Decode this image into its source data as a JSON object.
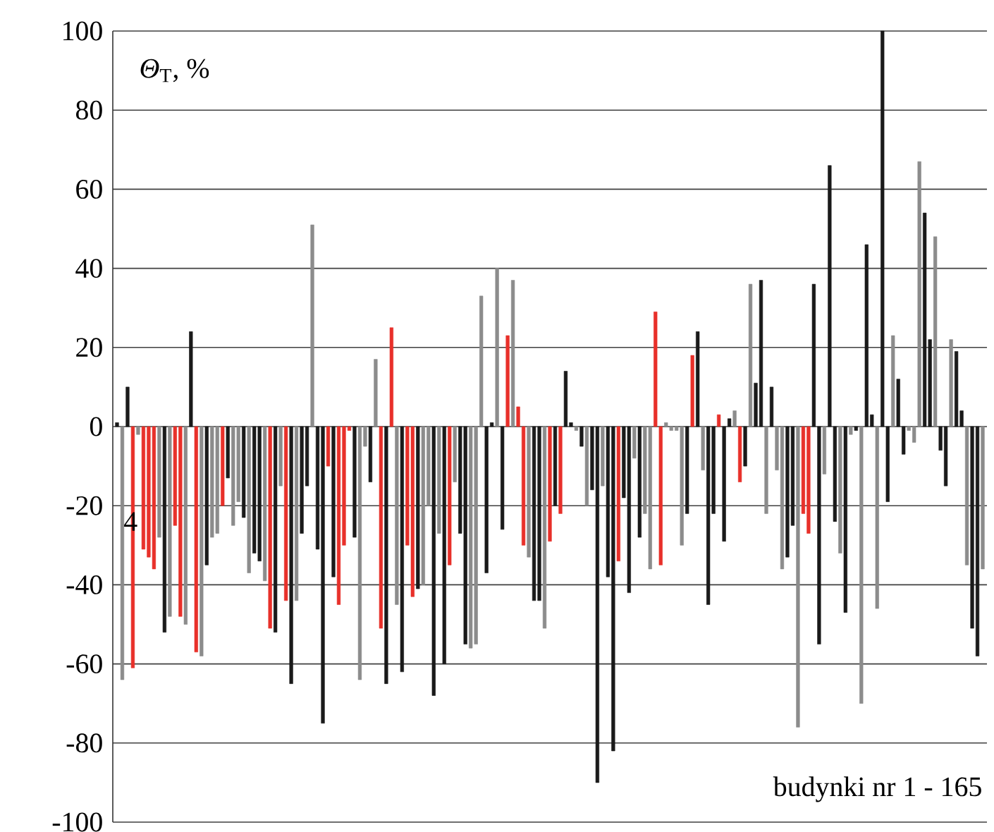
{
  "chart_data": {
    "type": "bar",
    "ylabel": "*Θ*$_{T}$, %",
    "xlabel": "budynki nr 1 - 165",
    "annotations": [
      "4"
    ],
    "ylim": [
      -100,
      100
    ],
    "yticks": [
      -100,
      -80,
      -60,
      -40,
      -20,
      0,
      20,
      40,
      60,
      80,
      100
    ],
    "grid": "y",
    "categories": [
      null,
      null,
      null,
      null,
      null,
      null,
      null,
      null,
      null,
      null,
      null,
      null,
      null,
      null,
      null,
      null,
      null,
      null,
      null,
      null,
      null,
      null,
      null,
      null,
      null,
      null,
      null,
      null,
      null,
      null,
      null,
      null,
      null,
      null,
      null,
      null,
      null,
      null,
      null,
      null,
      null,
      null,
      null,
      null,
      null,
      null,
      null,
      null,
      null,
      null,
      null,
      null,
      null,
      null,
      null,
      null,
      null,
      null,
      null,
      null,
      null,
      null,
      null,
      null,
      null,
      null,
      null,
      null,
      null,
      null,
      null,
      null,
      null,
      null,
      null,
      null,
      null,
      null,
      null,
      null,
      null,
      null,
      null,
      null,
      null,
      null,
      null,
      null,
      null,
      null,
      null,
      null,
      null,
      null,
      null,
      null,
      null,
      null,
      null,
      null,
      null,
      null,
      null,
      null,
      null,
      null,
      null,
      null,
      null,
      null,
      null,
      null,
      null,
      null,
      null,
      null,
      null,
      null,
      null,
      null,
      null,
      null,
      null,
      null,
      null,
      null,
      null,
      null,
      null,
      null,
      null,
      null,
      null,
      null,
      null,
      null,
      null,
      null,
      null,
      null,
      null,
      null,
      null,
      null,
      null,
      null,
      null,
      null,
      null,
      null,
      null,
      null,
      null,
      null,
      null,
      null,
      null,
      null,
      null,
      null,
      null,
      null,
      null,
      null,
      null
    ],
    "values": [
      1,
      -64,
      10,
      -61,
      -2,
      -31,
      -33,
      -36,
      -28,
      -52,
      -48,
      -25,
      -48,
      -50,
      24,
      -57,
      -58,
      -35,
      -28,
      -27,
      -20,
      -13,
      -25,
      -19,
      -23,
      -37,
      -32,
      -34,
      -39,
      -51,
      -52,
      -15,
      -44,
      -65,
      -44,
      -27,
      -15,
      51,
      -31,
      -75,
      -10,
      -38,
      -45,
      -30,
      -1,
      -28,
      -64,
      -5,
      -14,
      17,
      -51,
      -65,
      25,
      -45,
      -62,
      -30,
      -43,
      -41,
      -40,
      -20,
      -68,
      -27,
      -60,
      -35,
      -14,
      -27,
      -55,
      -56,
      -55,
      33,
      -37,
      1,
      40,
      -26,
      23,
      37,
      5,
      -30,
      -33,
      -44,
      -44,
      -51,
      -29,
      -20,
      -22,
      14,
      1,
      -1,
      -5,
      -20,
      -16,
      -90,
      -15,
      -38,
      -82,
      -34,
      -18,
      -42,
      -8,
      -28,
      -22,
      -36,
      29,
      -35,
      1,
      -1,
      -1,
      -30,
      -22,
      18,
      24,
      -11,
      -45,
      -22,
      3,
      -29,
      2,
      4,
      -14,
      -10,
      36,
      11,
      37,
      -22,
      10,
      -11,
      -36,
      -33,
      -25,
      -76,
      -22,
      -27,
      36,
      -55,
      -12,
      66,
      -24,
      -32,
      -47,
      -2,
      -1,
      -70,
      46,
      3,
      -46,
      100,
      -19,
      23,
      12,
      -7,
      -1,
      -4,
      67,
      54,
      22,
      48,
      -6,
      -15,
      22,
      19,
      4,
      -35,
      -51,
      -58,
      -36
    ],
    "colors": [
      "#1a1a1a",
      "#8c8c8c",
      "#1a1a1a",
      "#e8302a",
      "#8c8c8c",
      "#e8302a",
      "#e8302a",
      "#e8302a",
      "#8c8c8c",
      "#1a1a1a",
      "#8c8c8c",
      "#e8302a",
      "#e8302a",
      "#8c8c8c",
      "#1a1a1a",
      "#e8302a",
      "#8c8c8c",
      "#1a1a1a",
      "#8c8c8c",
      "#8c8c8c",
      "#e8302a",
      "#1a1a1a",
      "#8c8c8c",
      "#8c8c8c",
      "#1a1a1a",
      "#8c8c8c",
      "#1a1a1a",
      "#1a1a1a",
      "#8c8c8c",
      "#e8302a",
      "#1a1a1a",
      "#8c8c8c",
      "#e8302a",
      "#1a1a1a",
      "#8c8c8c",
      "#1a1a1a",
      "#1a1a1a",
      "#8c8c8c",
      "#1a1a1a",
      "#1a1a1a",
      "#e8302a",
      "#1a1a1a",
      "#e8302a",
      "#e8302a",
      "#e8302a",
      "#1a1a1a",
      "#8c8c8c",
      "#8c8c8c",
      "#1a1a1a",
      "#8c8c8c",
      "#e8302a",
      "#1a1a1a",
      "#e8302a",
      "#8c8c8c",
      "#1a1a1a",
      "#e8302a",
      "#e8302a",
      "#1a1a1a",
      "#8c8c8c",
      "#8c8c8c",
      "#1a1a1a",
      "#8c8c8c",
      "#1a1a1a",
      "#e8302a",
      "#8c8c8c",
      "#1a1a1a",
      "#1a1a1a",
      "#8c8c8c",
      "#8c8c8c",
      "#8c8c8c",
      "#1a1a1a",
      "#1a1a1a",
      "#8c8c8c",
      "#1a1a1a",
      "#e8302a",
      "#8c8c8c",
      "#e8302a",
      "#e8302a",
      "#8c8c8c",
      "#1a1a1a",
      "#1a1a1a",
      "#8c8c8c",
      "#e8302a",
      "#1a1a1a",
      "#e8302a",
      "#1a1a1a",
      "#1a1a1a",
      "#8c8c8c",
      "#1a1a1a",
      "#8c8c8c",
      "#1a1a1a",
      "#1a1a1a",
      "#8c8c8c",
      "#1a1a1a",
      "#1a1a1a",
      "#e8302a",
      "#1a1a1a",
      "#1a1a1a",
      "#8c8c8c",
      "#1a1a1a",
      "#8c8c8c",
      "#8c8c8c",
      "#e8302a",
      "#e8302a",
      "#8c8c8c",
      "#8c8c8c",
      "#8c8c8c",
      "#8c8c8c",
      "#1a1a1a",
      "#e8302a",
      "#1a1a1a",
      "#8c8c8c",
      "#1a1a1a",
      "#1a1a1a",
      "#e8302a",
      "#1a1a1a",
      "#1a1a1a",
      "#8c8c8c",
      "#e8302a",
      "#1a1a1a",
      "#8c8c8c",
      "#1a1a1a",
      "#1a1a1a",
      "#8c8c8c",
      "#1a1a1a",
      "#8c8c8c",
      "#8c8c8c",
      "#1a1a1a",
      "#1a1a1a",
      "#8c8c8c",
      "#e8302a",
      "#e8302a",
      "#1a1a1a",
      "#1a1a1a",
      "#8c8c8c",
      "#1a1a1a",
      "#1a1a1a",
      "#8c8c8c",
      "#1a1a1a",
      "#8c8c8c",
      "#1a1a1a",
      "#8c8c8c",
      "#1a1a1a",
      "#1a1a1a",
      "#8c8c8c",
      "#1a1a1a",
      "#1a1a1a",
      "#8c8c8c",
      "#1a1a1a",
      "#1a1a1a",
      "#8c8c8c",
      "#8c8c8c",
      "#8c8c8c",
      "#1a1a1a",
      "#1a1a1a",
      "#8c8c8c",
      "#1a1a1a",
      "#1a1a1a",
      "#8c8c8c",
      "#1a1a1a",
      "#1a1a1a",
      "#8c8c8c",
      "#1a1a1a",
      "#1a1a1a",
      "#8c8c8c"
    ]
  }
}
